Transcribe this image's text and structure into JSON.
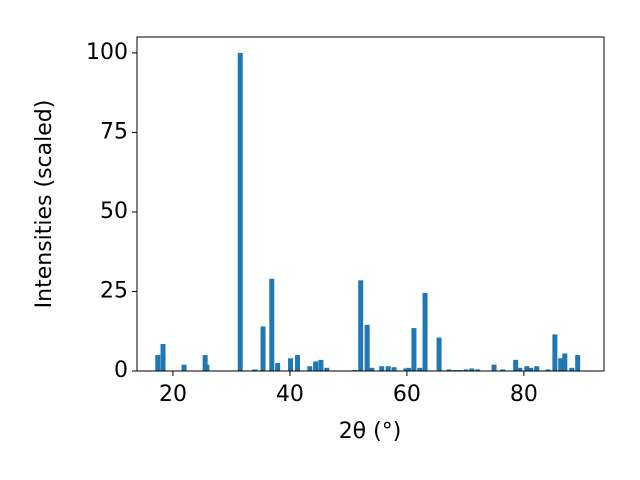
{
  "chart_data": {
    "type": "bar",
    "xlabel": "2θ (°)",
    "ylabel": "Intensities (scaled)",
    "x": [
      17.4,
      18.3,
      21.9,
      25.5,
      25.8,
      31.5,
      34.0,
      35.4,
      36.9,
      37.9,
      40.1,
      41.3,
      43.4,
      44.4,
      45.3,
      46.3,
      51.1,
      52.1,
      53.2,
      54.0,
      55.7,
      56.8,
      57.8,
      59.8,
      60.3,
      61.2,
      62.2,
      63.1,
      65.5,
      67.2,
      68.2,
      69.1,
      70.1,
      71.1,
      72.1,
      74.9,
      76.4,
      78.6,
      79.3,
      80.5,
      81.2,
      82.2,
      84.1,
      85.3,
      86.3,
      87.0,
      88.2,
      89.2
    ],
    "values": [
      5,
      8.5,
      2,
      5,
      2,
      100,
      0.5,
      14,
      29,
      2.5,
      4,
      5,
      1.5,
      3,
      3.5,
      1,
      0.3,
      28.5,
      14.5,
      1,
      1.5,
      1.5,
      1.2,
      0.8,
      1,
      13.5,
      1,
      24.5,
      10.5,
      0.5,
      0.3,
      0.3,
      0.5,
      0.8,
      0.5,
      2,
      0.5,
      3.5,
      1,
      1.5,
      1,
      1.5,
      0.5,
      11.5,
      4,
      5.5,
      1,
      5
    ],
    "color": "#1f77b4",
    "xlim": [
      13.85,
      93.7
    ],
    "xticks": [
      20,
      40,
      60,
      80
    ],
    "ylim": [
      0,
      105
    ],
    "yticks": [
      0,
      25,
      50,
      75,
      100
    ]
  }
}
